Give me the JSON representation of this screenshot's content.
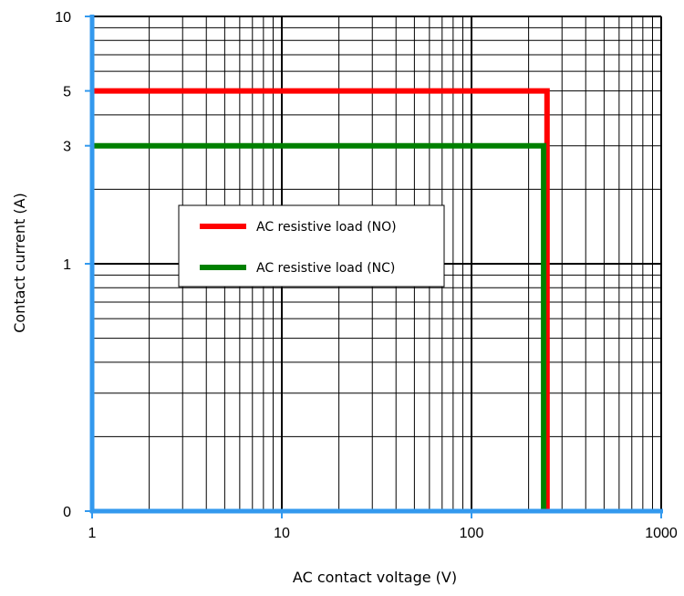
{
  "chart_data": {
    "type": "line",
    "title": "",
    "xlabel": "AC contact voltage (V)",
    "ylabel": "Contact current (A)",
    "x_scale": "log",
    "y_scale": "log",
    "xlim": [
      1,
      1000
    ],
    "ylim_displayed": [
      "0",
      "10"
    ],
    "x_ticks": [
      "1",
      "10",
      "100",
      "1000"
    ],
    "y_ticks": [
      {
        "label": "10",
        "value": 10
      },
      {
        "label": "5",
        "value": 5
      },
      {
        "label": "3",
        "value": 3
      },
      {
        "label": "1",
        "value": 1
      },
      {
        "label": "0",
        "value": 0
      }
    ],
    "grid": true,
    "legend_position": "center-left",
    "series": [
      {
        "name": "AC resistive load (NO)",
        "color": "#ff0000",
        "points": [
          [
            1,
            5
          ],
          [
            250,
            5
          ],
          [
            250,
            0
          ]
        ]
      },
      {
        "name": "AC resistive load (NC)",
        "color": "#008000",
        "points": [
          [
            1,
            3
          ],
          [
            240,
            3
          ],
          [
            240,
            0
          ]
        ]
      }
    ],
    "axis_line_color": "#3399ee"
  }
}
